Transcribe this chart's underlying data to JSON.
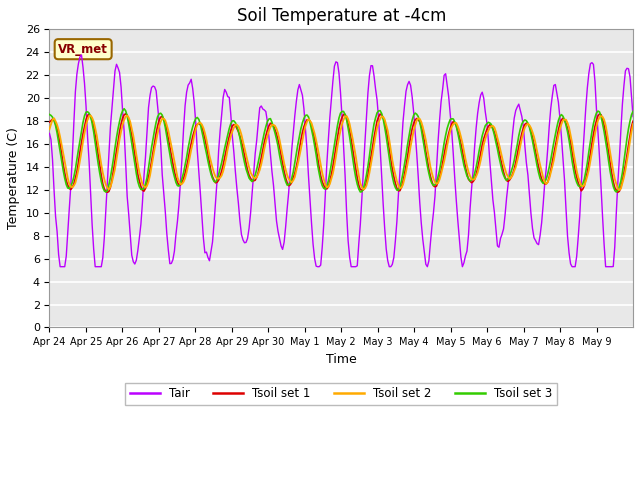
{
  "title": "Soil Temperature at -4cm",
  "xlabel": "Time",
  "ylabel": "Temperature (C)",
  "ylim": [
    0,
    26
  ],
  "yticks": [
    0,
    2,
    4,
    6,
    8,
    10,
    12,
    14,
    16,
    18,
    20,
    22,
    24,
    26
  ],
  "xtick_labels": [
    "Apr 24",
    "Apr 25",
    "Apr 26",
    "Apr 27",
    "Apr 28",
    "Apr 29",
    "Apr 30",
    "May 1",
    "May 2",
    "May 3",
    "May 4",
    "May 5",
    "May 6",
    "May 7",
    "May 8",
    "May 9"
  ],
  "colors": {
    "Tair": "#bb00ff",
    "Tsoil1": "#dd0000",
    "Tsoil2": "#ffaa00",
    "Tsoil3": "#33cc00"
  },
  "legend_labels": [
    "Tair",
    "Tsoil set 1",
    "Tsoil set 2",
    "Tsoil set 3"
  ],
  "title_fontsize": 12,
  "label_fontsize": 9,
  "tick_fontsize": 8,
  "plot_bg": "#e8e8e8",
  "fig_bg": "#ffffff",
  "grid_color": "#ffffff",
  "annotation_text": "VR_met",
  "annotation_bg": "#ffffcc",
  "annotation_border": "#996600",
  "linewidth": 1.0
}
